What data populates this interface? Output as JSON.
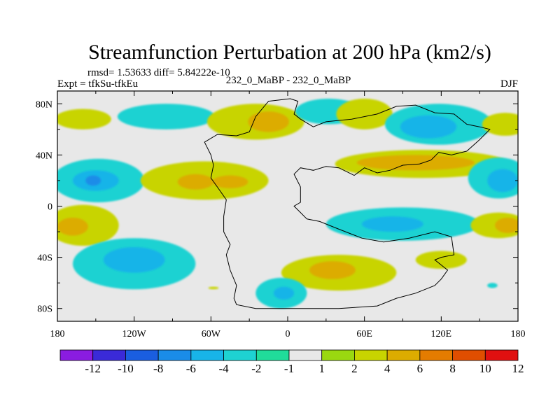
{
  "chart_data": {
    "type": "contour-map",
    "title": "Streamfunction Perturbation at 200 hPa (km2/s)",
    "stats_label": "rmsd= 1.53633 diff= 5.84222e-10",
    "experiment_label": "Expt = tfkSu-tfkEu",
    "center_label": "232_0_MaBP - 232_0_MaBP",
    "season_label": "DJF",
    "x_axis": {
      "range": [
        -180,
        180
      ],
      "ticks": [
        -180,
        -120,
        -60,
        0,
        60,
        120,
        180
      ],
      "tick_labels": [
        "180",
        "120W",
        "60W",
        "0",
        "60E",
        "120E",
        "180"
      ]
    },
    "y_axis": {
      "range": [
        -90,
        90
      ],
      "ticks": [
        80,
        40,
        0,
        -40,
        -80
      ],
      "tick_labels": [
        "80N",
        "40N",
        "0",
        "40S",
        "80S"
      ]
    },
    "colorbar": {
      "levels": [
        -12,
        -10,
        -8,
        -6,
        -4,
        -2,
        -1,
        1,
        2,
        4,
        6,
        8,
        10,
        12
      ],
      "labels": [
        "-12",
        "-10",
        "-8",
        "-6",
        "-4",
        "-2",
        "-1",
        "1",
        "2",
        "4",
        "6",
        "8",
        "10",
        "12"
      ],
      "colors": [
        "#8a1ce0",
        "#3a2ad8",
        "#1a5ee0",
        "#1a8ce8",
        "#18b4e8",
        "#1ed2d2",
        "#20dc9a",
        "#e8e8e8",
        "#9ad810",
        "#c8d400",
        "#dcac00",
        "#e47c00",
        "#e04e00",
        "#e01010"
      ]
    },
    "anomalies": [
      {
        "name": "nh-highlat-pos-1",
        "lon": -160,
        "lat": 68,
        "rx": 22,
        "ry": 8,
        "value": 2
      },
      {
        "name": "nh-highlat-neg-1",
        "lon": -95,
        "lat": 70,
        "rx": 38,
        "ry": 10,
        "value": -2
      },
      {
        "name": "nh-highlat-pos-2",
        "lon": -25,
        "lat": 66,
        "rx": 38,
        "ry": 14,
        "value": 2
      },
      {
        "name": "nh-highlat-core-2",
        "lon": -15,
        "lat": 66,
        "rx": 16,
        "ry": 8,
        "value": 4
      },
      {
        "name": "nh-highlat-neg-2",
        "lon": 32,
        "lat": 74,
        "rx": 26,
        "ry": 10,
        "value": -2
      },
      {
        "name": "nh-highlat-pos-3",
        "lon": 60,
        "lat": 72,
        "rx": 22,
        "ry": 12,
        "value": 2
      },
      {
        "name": "nh-highlat-neg-3",
        "lon": 118,
        "lat": 64,
        "rx": 42,
        "ry": 16,
        "value": -2
      },
      {
        "name": "nh-highlat-core-3",
        "lon": 110,
        "lat": 62,
        "rx": 22,
        "ry": 9,
        "value": -4
      },
      {
        "name": "nh-highlat-pos-4",
        "lon": 170,
        "lat": 64,
        "rx": 18,
        "ry": 9,
        "value": 2
      },
      {
        "name": "nh-mid-neg-1",
        "lon": -148,
        "lat": 20,
        "rx": 36,
        "ry": 17,
        "value": -2
      },
      {
        "name": "nh-mid-core-1",
        "lon": -150,
        "lat": 20,
        "rx": 18,
        "ry": 8,
        "value": -4
      },
      {
        "name": "nh-mid-core-1b",
        "lon": -152,
        "lat": 20,
        "rx": 6,
        "ry": 4,
        "value": -6
      },
      {
        "name": "nh-mid-pos-1",
        "lon": -65,
        "lat": 20,
        "rx": 50,
        "ry": 15,
        "value": 2
      },
      {
        "name": "nh-mid-core-pos-1",
        "lon": -72,
        "lat": 19,
        "rx": 14,
        "ry": 6,
        "value": 4
      },
      {
        "name": "nh-mid-core-pos-1b",
        "lon": -45,
        "lat": 19,
        "rx": 14,
        "ry": 5,
        "value": 4
      },
      {
        "name": "nh-mid-pos-2",
        "lon": 105,
        "lat": 33,
        "rx": 68,
        "ry": 11,
        "value": 2
      },
      {
        "name": "nh-mid-core-pos-2",
        "lon": 100,
        "lat": 34,
        "rx": 46,
        "ry": 6,
        "value": 4
      },
      {
        "name": "nh-mid-neg-2",
        "lon": 165,
        "lat": 22,
        "rx": 24,
        "ry": 16,
        "value": -2
      },
      {
        "name": "nh-mid-core-neg-2",
        "lon": 168,
        "lat": 20,
        "rx": 12,
        "ry": 9,
        "value": -4
      },
      {
        "name": "tropic-pos-1",
        "lon": -160,
        "lat": -15,
        "rx": 28,
        "ry": 16,
        "value": 2
      },
      {
        "name": "tropic-core-pos-1",
        "lon": -168,
        "lat": -16,
        "rx": 12,
        "ry": 7,
        "value": 4
      },
      {
        "name": "tropic-neg-1",
        "lon": 90,
        "lat": -14,
        "rx": 60,
        "ry": 13,
        "value": -2
      },
      {
        "name": "tropic-core-neg-1",
        "lon": 82,
        "lat": -14,
        "rx": 24,
        "ry": 6,
        "value": -4
      },
      {
        "name": "tropic-pos-2",
        "lon": 165,
        "lat": -15,
        "rx": 22,
        "ry": 10,
        "value": 2
      },
      {
        "name": "tropic-core-pos-2",
        "lon": 172,
        "lat": -15,
        "rx": 10,
        "ry": 6,
        "value": 4
      },
      {
        "name": "sh-neg-1",
        "lon": -120,
        "lat": -45,
        "rx": 48,
        "ry": 20,
        "value": -2
      },
      {
        "name": "sh-core-neg-1",
        "lon": -120,
        "lat": -42,
        "rx": 24,
        "ry": 10,
        "value": -4
      },
      {
        "name": "sh-pos-1",
        "lon": 40,
        "lat": -52,
        "rx": 45,
        "ry": 14,
        "value": 2
      },
      {
        "name": "sh-core-pos-1",
        "lon": 35,
        "lat": -50,
        "rx": 18,
        "ry": 7,
        "value": 4
      },
      {
        "name": "sh-pos-2",
        "lon": 120,
        "lat": -42,
        "rx": 20,
        "ry": 7,
        "value": 2
      },
      {
        "name": "sh-neg-2",
        "lon": -5,
        "lat": -68,
        "rx": 20,
        "ry": 12,
        "value": -2
      },
      {
        "name": "sh-core-neg-2",
        "lon": -3,
        "lat": -68,
        "rx": 8,
        "ry": 5,
        "value": -4
      },
      {
        "name": "sh-neg-3",
        "lon": 160,
        "lat": -62,
        "rx": 4,
        "ry": 2,
        "value": -2
      },
      {
        "name": "sh-pos-3",
        "lon": -58,
        "lat": -64,
        "rx": 4,
        "ry": 1,
        "value": 2
      }
    ],
    "outline_lonlat": [
      [
        -60,
        40
      ],
      [
        -65,
        50
      ],
      [
        -55,
        56
      ],
      [
        -40,
        55
      ],
      [
        -30,
        58
      ],
      [
        -25,
        70
      ],
      [
        -15,
        82
      ],
      [
        2,
        84
      ],
      [
        8,
        82
      ],
      [
        5,
        72
      ],
      [
        10,
        68
      ],
      [
        20,
        62
      ],
      [
        30,
        66
      ],
      [
        50,
        68
      ],
      [
        70,
        72
      ],
      [
        85,
        78
      ],
      [
        100,
        79
      ],
      [
        115,
        73
      ],
      [
        130,
        72
      ],
      [
        140,
        64
      ],
      [
        150,
        62
      ],
      [
        158,
        60
      ],
      [
        150,
        52
      ],
      [
        140,
        43
      ],
      [
        128,
        40
      ],
      [
        118,
        42
      ],
      [
        112,
        36
      ],
      [
        103,
        33
      ],
      [
        90,
        32
      ],
      [
        80,
        28
      ],
      [
        70,
        26
      ],
      [
        60,
        30
      ],
      [
        52,
        24
      ],
      [
        40,
        30
      ],
      [
        30,
        31
      ],
      [
        20,
        28
      ],
      [
        10,
        30
      ],
      [
        5,
        25
      ],
      [
        10,
        15
      ],
      [
        10,
        3
      ],
      [
        5,
        0
      ],
      [
        10,
        -5
      ],
      [
        15,
        -10
      ],
      [
        25,
        -12
      ],
      [
        40,
        -18
      ],
      [
        58,
        -25
      ],
      [
        75,
        -28
      ],
      [
        95,
        -25
      ],
      [
        115,
        -20
      ],
      [
        128,
        -24
      ],
      [
        130,
        -38
      ],
      [
        120,
        -40
      ],
      [
        115,
        -42
      ],
      [
        125,
        -50
      ],
      [
        120,
        -57
      ],
      [
        115,
        -62
      ],
      [
        100,
        -68
      ],
      [
        85,
        -72
      ],
      [
        70,
        -78
      ],
      [
        40,
        -80
      ],
      [
        -25,
        -80
      ],
      [
        -40,
        -77
      ],
      [
        -42,
        -72
      ],
      [
        -40,
        -62
      ],
      [
        -45,
        -50
      ],
      [
        -48,
        -38
      ],
      [
        -45,
        -30
      ],
      [
        -50,
        -20
      ],
      [
        -50,
        -8
      ],
      [
        -48,
        5
      ],
      [
        -55,
        15
      ],
      [
        -60,
        22
      ],
      [
        -58,
        32
      ],
      [
        -60,
        40
      ]
    ]
  }
}
